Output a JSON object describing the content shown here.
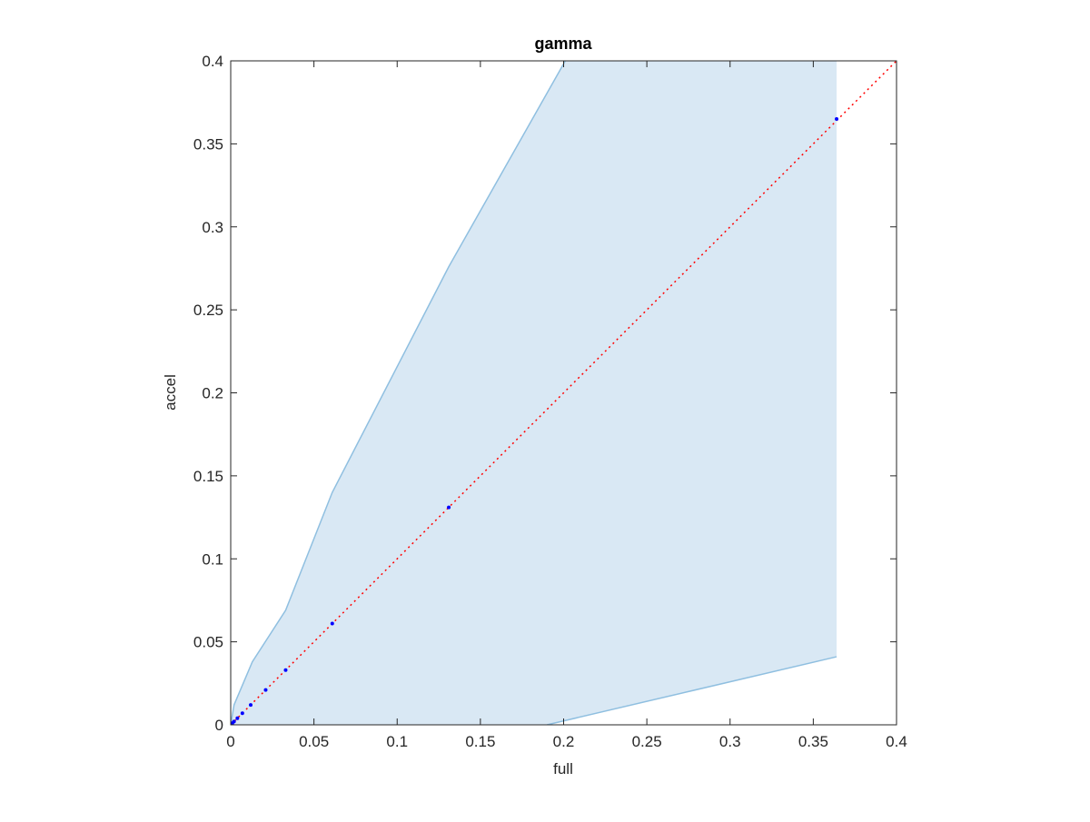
{
  "chart_data": {
    "type": "scatter",
    "title": "gamma",
    "x_label": "full",
    "y_label": "accel",
    "xlim": [
      0,
      0.4
    ],
    "ylim": [
      0,
      0.4
    ],
    "xticks": [
      0,
      0.05,
      0.1,
      0.15,
      0.2,
      0.25,
      0.3,
      0.35,
      0.4
    ],
    "yticks": [
      0,
      0.05,
      0.1,
      0.15,
      0.2,
      0.25,
      0.3,
      0.35,
      0.4
    ],
    "points": {
      "color": "#0000ff",
      "x": [
        0.0003,
        0.001,
        0.002,
        0.004,
        0.007,
        0.012,
        0.021,
        0.033,
        0.061,
        0.131,
        0.364
      ],
      "y": [
        0.0003,
        0.001,
        0.002,
        0.004,
        0.007,
        0.012,
        0.021,
        0.033,
        0.061,
        0.131,
        0.365
      ]
    },
    "reference_line": {
      "color": "#ff0000",
      "x": [
        0,
        0.4
      ],
      "y": [
        0,
        0.4
      ]
    },
    "band": {
      "fill": "#d9e8f4",
      "line_color": "#8fbfe0",
      "upper": {
        "x": [
          0,
          0.002,
          0.013,
          0.033,
          0.061,
          0.131,
          0.201
        ],
        "y": [
          0,
          0.012,
          0.038,
          0.069,
          0.14,
          0.276,
          0.4
        ]
      },
      "lower": {
        "x": [
          0.19,
          0.364
        ],
        "y": [
          0,
          0.041
        ]
      }
    }
  }
}
